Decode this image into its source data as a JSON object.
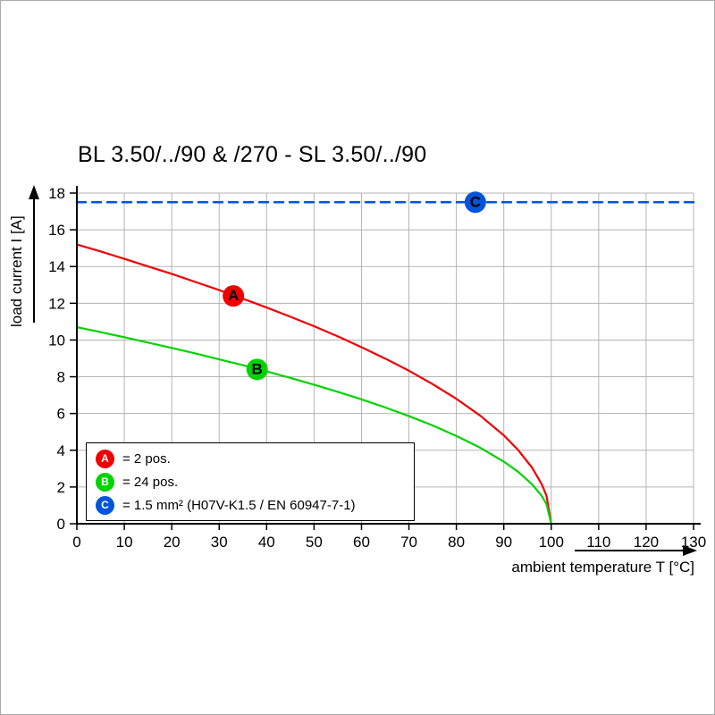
{
  "page": {
    "title": "BL 3.50/../90 & /270 - SL 3.50/../90"
  },
  "chart_data": {
    "type": "line",
    "title": "BL 3.50/../90 & /270 - SL 3.50/../90",
    "xlabel": "ambient temperature T [°C]",
    "ylabel": "load current I [A]",
    "xlim": [
      0,
      130
    ],
    "ylim": [
      0,
      18
    ],
    "xticks": [
      0,
      10,
      20,
      30,
      40,
      50,
      60,
      70,
      80,
      90,
      100,
      110,
      120,
      130
    ],
    "yticks": [
      0,
      2,
      4,
      6,
      8,
      10,
      12,
      14,
      16,
      18
    ],
    "grid": true,
    "legend_position": "bottom-left",
    "series": [
      {
        "name": "A",
        "legend_label": "= 2 pos.",
        "color": "#f00000",
        "line_style": "solid",
        "x": [
          0,
          5,
          10,
          15,
          20,
          25,
          30,
          35,
          40,
          45,
          50,
          55,
          60,
          65,
          70,
          75,
          80,
          85,
          90,
          93,
          96,
          98,
          99,
          100
        ],
        "y": [
          15.2,
          14.82,
          14.42,
          14.01,
          13.6,
          13.16,
          12.72,
          12.25,
          11.77,
          11.27,
          10.75,
          10.2,
          9.61,
          8.99,
          8.33,
          7.6,
          6.8,
          5.89,
          4.81,
          4.02,
          3.04,
          2.15,
          1.52,
          0
        ]
      },
      {
        "name": "B",
        "legend_label": "= 24 pos.",
        "color": "#00d400",
        "line_style": "solid",
        "x": [
          0,
          5,
          10,
          15,
          20,
          25,
          30,
          35,
          40,
          45,
          50,
          55,
          60,
          65,
          70,
          75,
          80,
          85,
          90,
          93,
          96,
          98,
          99,
          100
        ],
        "y": [
          10.7,
          10.43,
          10.15,
          9.86,
          9.57,
          9.27,
          8.95,
          8.63,
          8.29,
          7.94,
          7.57,
          7.18,
          6.77,
          6.33,
          5.86,
          5.35,
          4.78,
          4.14,
          3.38,
          2.83,
          2.14,
          1.51,
          1.07,
          0
        ]
      },
      {
        "name": "C",
        "legend_label": "= 1.5 mm² (H07V-K1.5 / EN 60947-7-1)",
        "color": "#0055dc",
        "line_style": "dashed",
        "x": [
          0,
          130
        ],
        "y": [
          17.5,
          17.5
        ]
      }
    ],
    "markers": [
      {
        "series": "A",
        "label": "A",
        "x": 33,
        "y": 12.4
      },
      {
        "series": "B",
        "label": "B",
        "x": 38,
        "y": 8.4
      },
      {
        "series": "C",
        "label": "C",
        "x": 84,
        "y": 17.5
      }
    ]
  }
}
